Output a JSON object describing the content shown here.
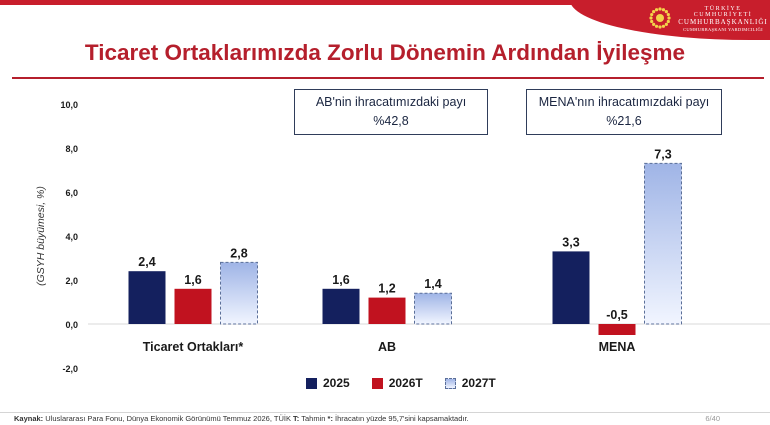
{
  "header": {
    "org_line1": "TÜRKİYE CUMHURİYETİ",
    "org_line2": "CUMHURBAŞKANLIĞI",
    "org_line3": "CUMHURBAŞKANI YARDIMCILIĞI",
    "emblem_icon": "sun-emblem-icon"
  },
  "title": "Ticaret Ortaklarımızda Zorlu Dönemin Ardından İyileşme",
  "callouts": {
    "ab": {
      "line1": "AB'nin ihracatımızdaki payı",
      "line2": "%42,8"
    },
    "mena": {
      "line1": "MENA'nın ihracatımızdaki payı",
      "line2": "%21,6"
    }
  },
  "colors": {
    "accent_red": "#b51f2c",
    "s2025": "#14205e",
    "s2026": "#c1121f",
    "s2027_top": "#9fb4e6",
    "s2027_bottom": "#f1f5ff"
  },
  "chart_data": {
    "type": "bar",
    "ylabel": "(GSYH büyümesi, %)",
    "ylim": [
      -2,
      10
    ],
    "yticks": [
      "10,0",
      "8,0",
      "6,0",
      "4,0",
      "2,0",
      "0,0",
      "-2,0"
    ],
    "categories": [
      "Ticaret Ortakları*",
      "AB",
      "MENA"
    ],
    "series": [
      {
        "name": "2025",
        "values": [
          2.4,
          1.6,
          3.3
        ],
        "labels": [
          "2,4",
          "1,6",
          "3,3"
        ]
      },
      {
        "name": "2026T",
        "values": [
          1.6,
          1.2,
          -0.5
        ],
        "labels": [
          "1,6",
          "1,2",
          "-0,5"
        ]
      },
      {
        "name": "2027T",
        "values": [
          2.8,
          1.4,
          7.3
        ],
        "labels": [
          "2,8",
          "1,4",
          "7,3"
        ]
      }
    ],
    "grid": false,
    "legend_position": "bottom"
  },
  "footer": {
    "source_label": "Kaynak:",
    "source_text": "Uluslararası Para Fonu, Dünya Ekonomik Görünümü Temmuz 2026, TÜİK",
    "t_label": "T:",
    "t_text": "Tahmin",
    "note_label": "*:",
    "note_text": "İhracatın yüzde 95,7'sini kapsamaktadır.",
    "page": "6/40"
  }
}
